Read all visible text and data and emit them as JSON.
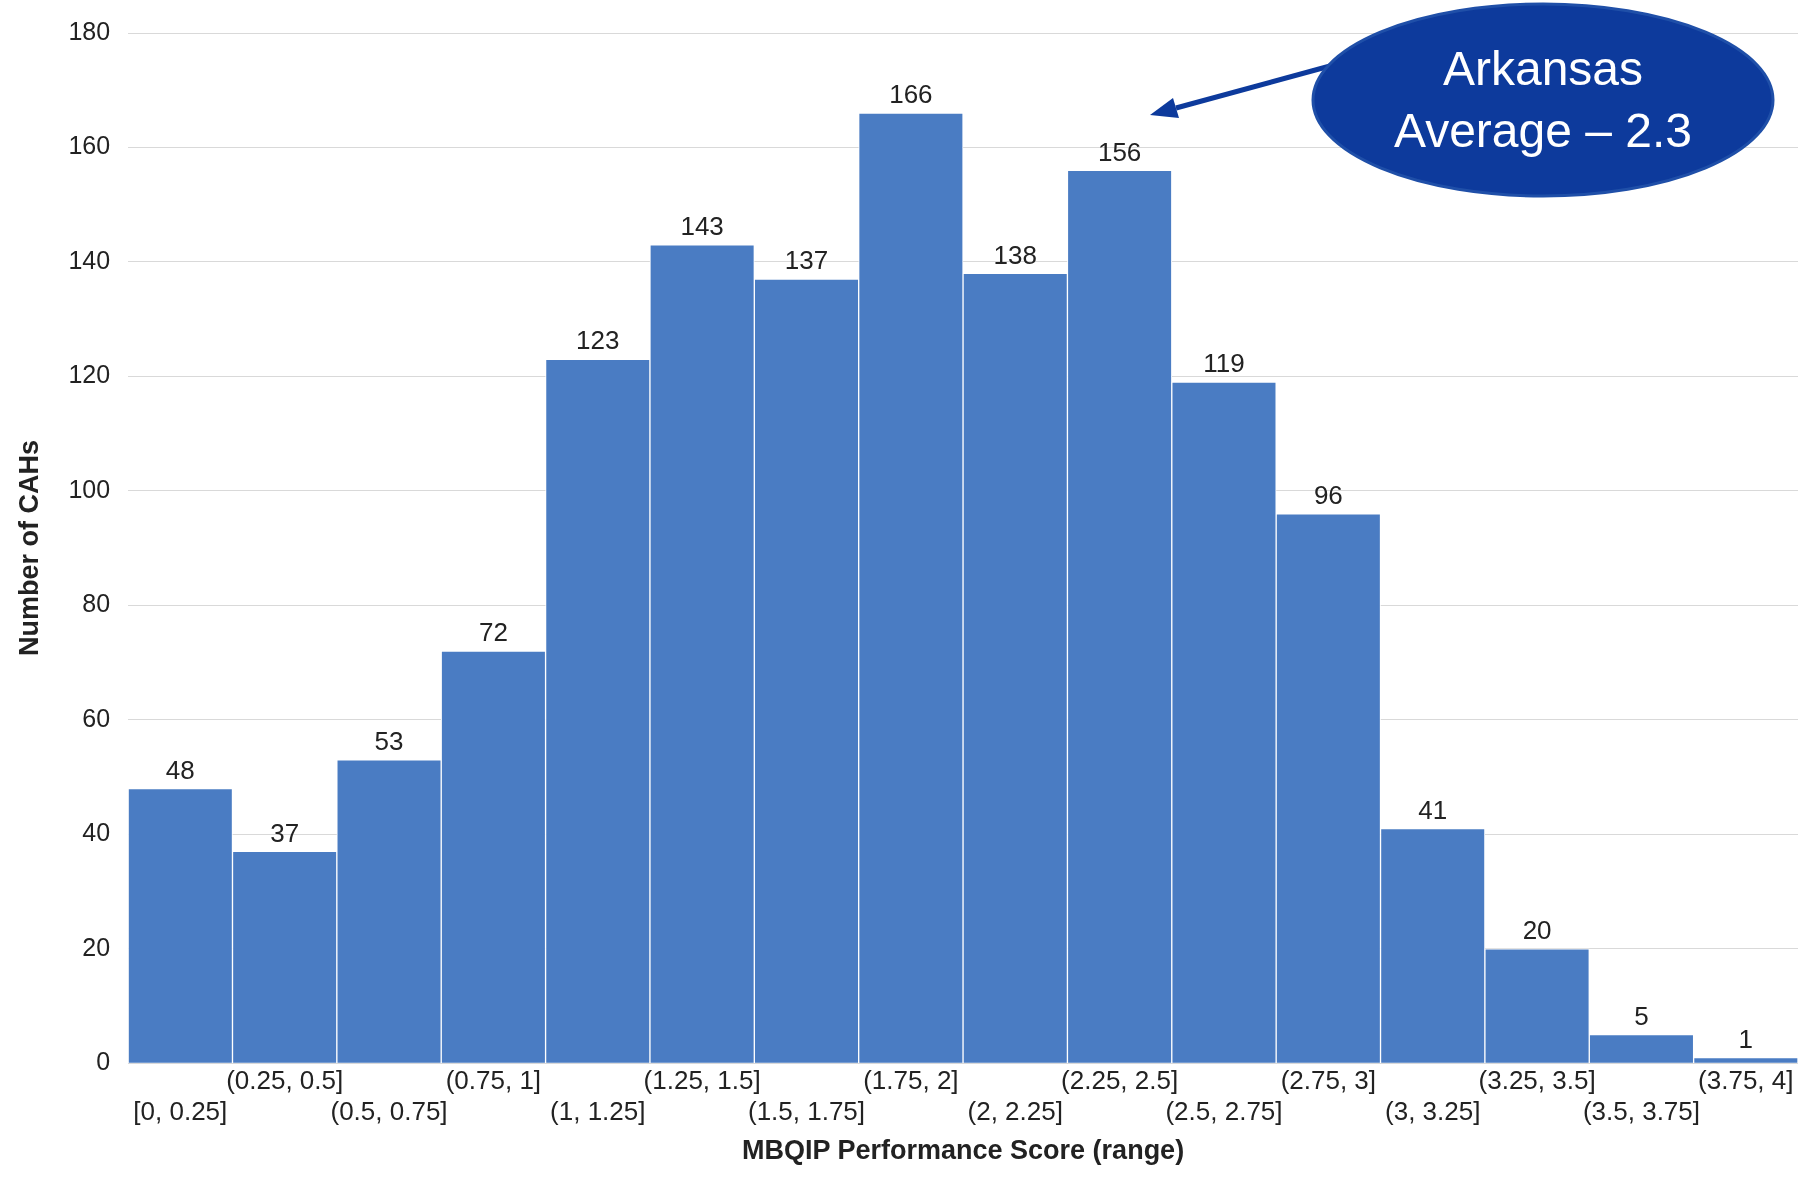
{
  "chart_data": {
    "type": "bar",
    "xlabel": "MBQIP Performance Score (range)",
    "ylabel": "Number of CAHs",
    "categories": [
      "[0, 0.25]",
      "(0.25, 0.5]",
      "(0.5, 0.75]",
      "(0.75, 1]",
      "(1, 1.25]",
      "(1.25, 1.5]",
      "(1.5, 1.75]",
      "(1.75, 2]",
      "(2, 2.25]",
      "(2.25, 2.5]",
      "(2.5, 2.75]",
      "(2.75, 3]",
      "(3, 3.25]",
      "(3.25, 3.5]",
      "(3.5, 3.75]",
      "(3.75, 4]"
    ],
    "values": [
      48,
      37,
      53,
      72,
      123,
      143,
      137,
      166,
      138,
      156,
      119,
      96,
      41,
      20,
      5,
      1
    ],
    "color": "#4a7cc3",
    "ylim": [
      0,
      180
    ],
    "yticks": [
      0,
      20,
      40,
      60,
      80,
      100,
      120,
      140,
      160,
      180
    ],
    "grid": "y",
    "legend": false,
    "data_labels": true,
    "annotations": [
      "Arkansas Average – 2.3"
    ]
  }
}
